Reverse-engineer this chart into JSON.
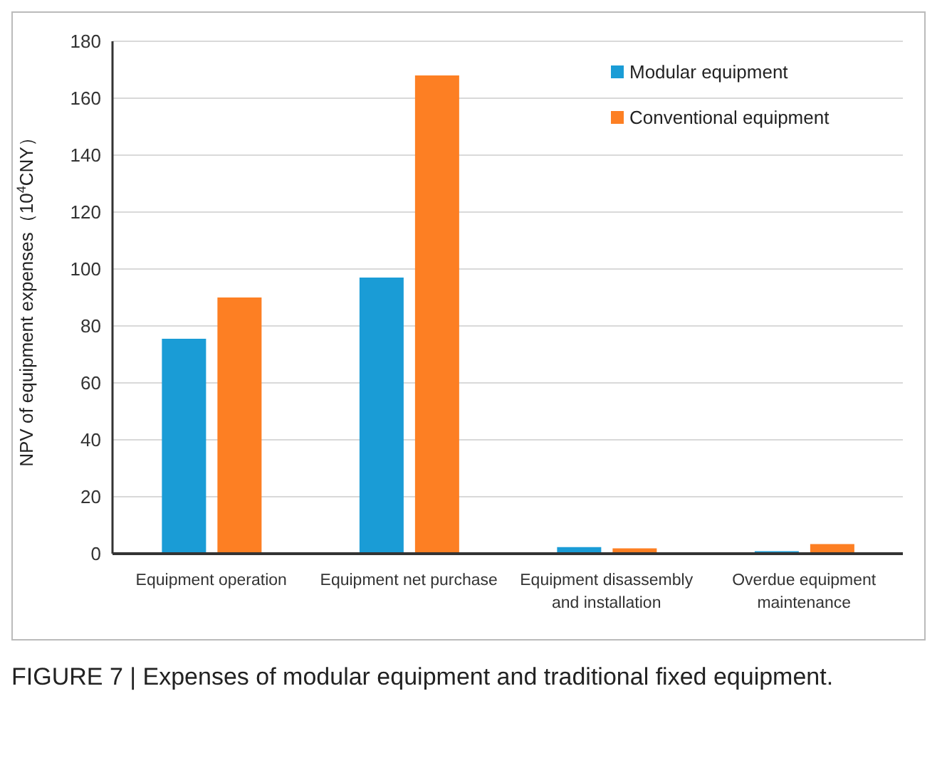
{
  "chart_data": {
    "type": "bar",
    "ylabel": "NPV of equipment expenses（10$^{4}$CNY）",
    "categories": [
      "Equipment operation",
      "Equipment net purchase",
      "Equipment disassembly and installation",
      "Overdue equipment maintenance"
    ],
    "series": [
      {
        "name": "Modular equipment",
        "color": "#1a9cd6",
        "values": [
          75.5,
          97,
          2.3,
          0.9
        ]
      },
      {
        "name": "Conventional equipment",
        "color": "#fd7f23",
        "values": [
          90,
          168,
          1.9,
          3.4
        ]
      }
    ],
    "ylim": [
      0,
      180
    ],
    "yticks": [
      0,
      20,
      40,
      60,
      80,
      100,
      120,
      140,
      160,
      180
    ],
    "grid": "y",
    "legend": "top right",
    "annotations": [
      "FIGURE 7 | Expenses of modular equipment and traditional fixed equipment."
    ]
  }
}
